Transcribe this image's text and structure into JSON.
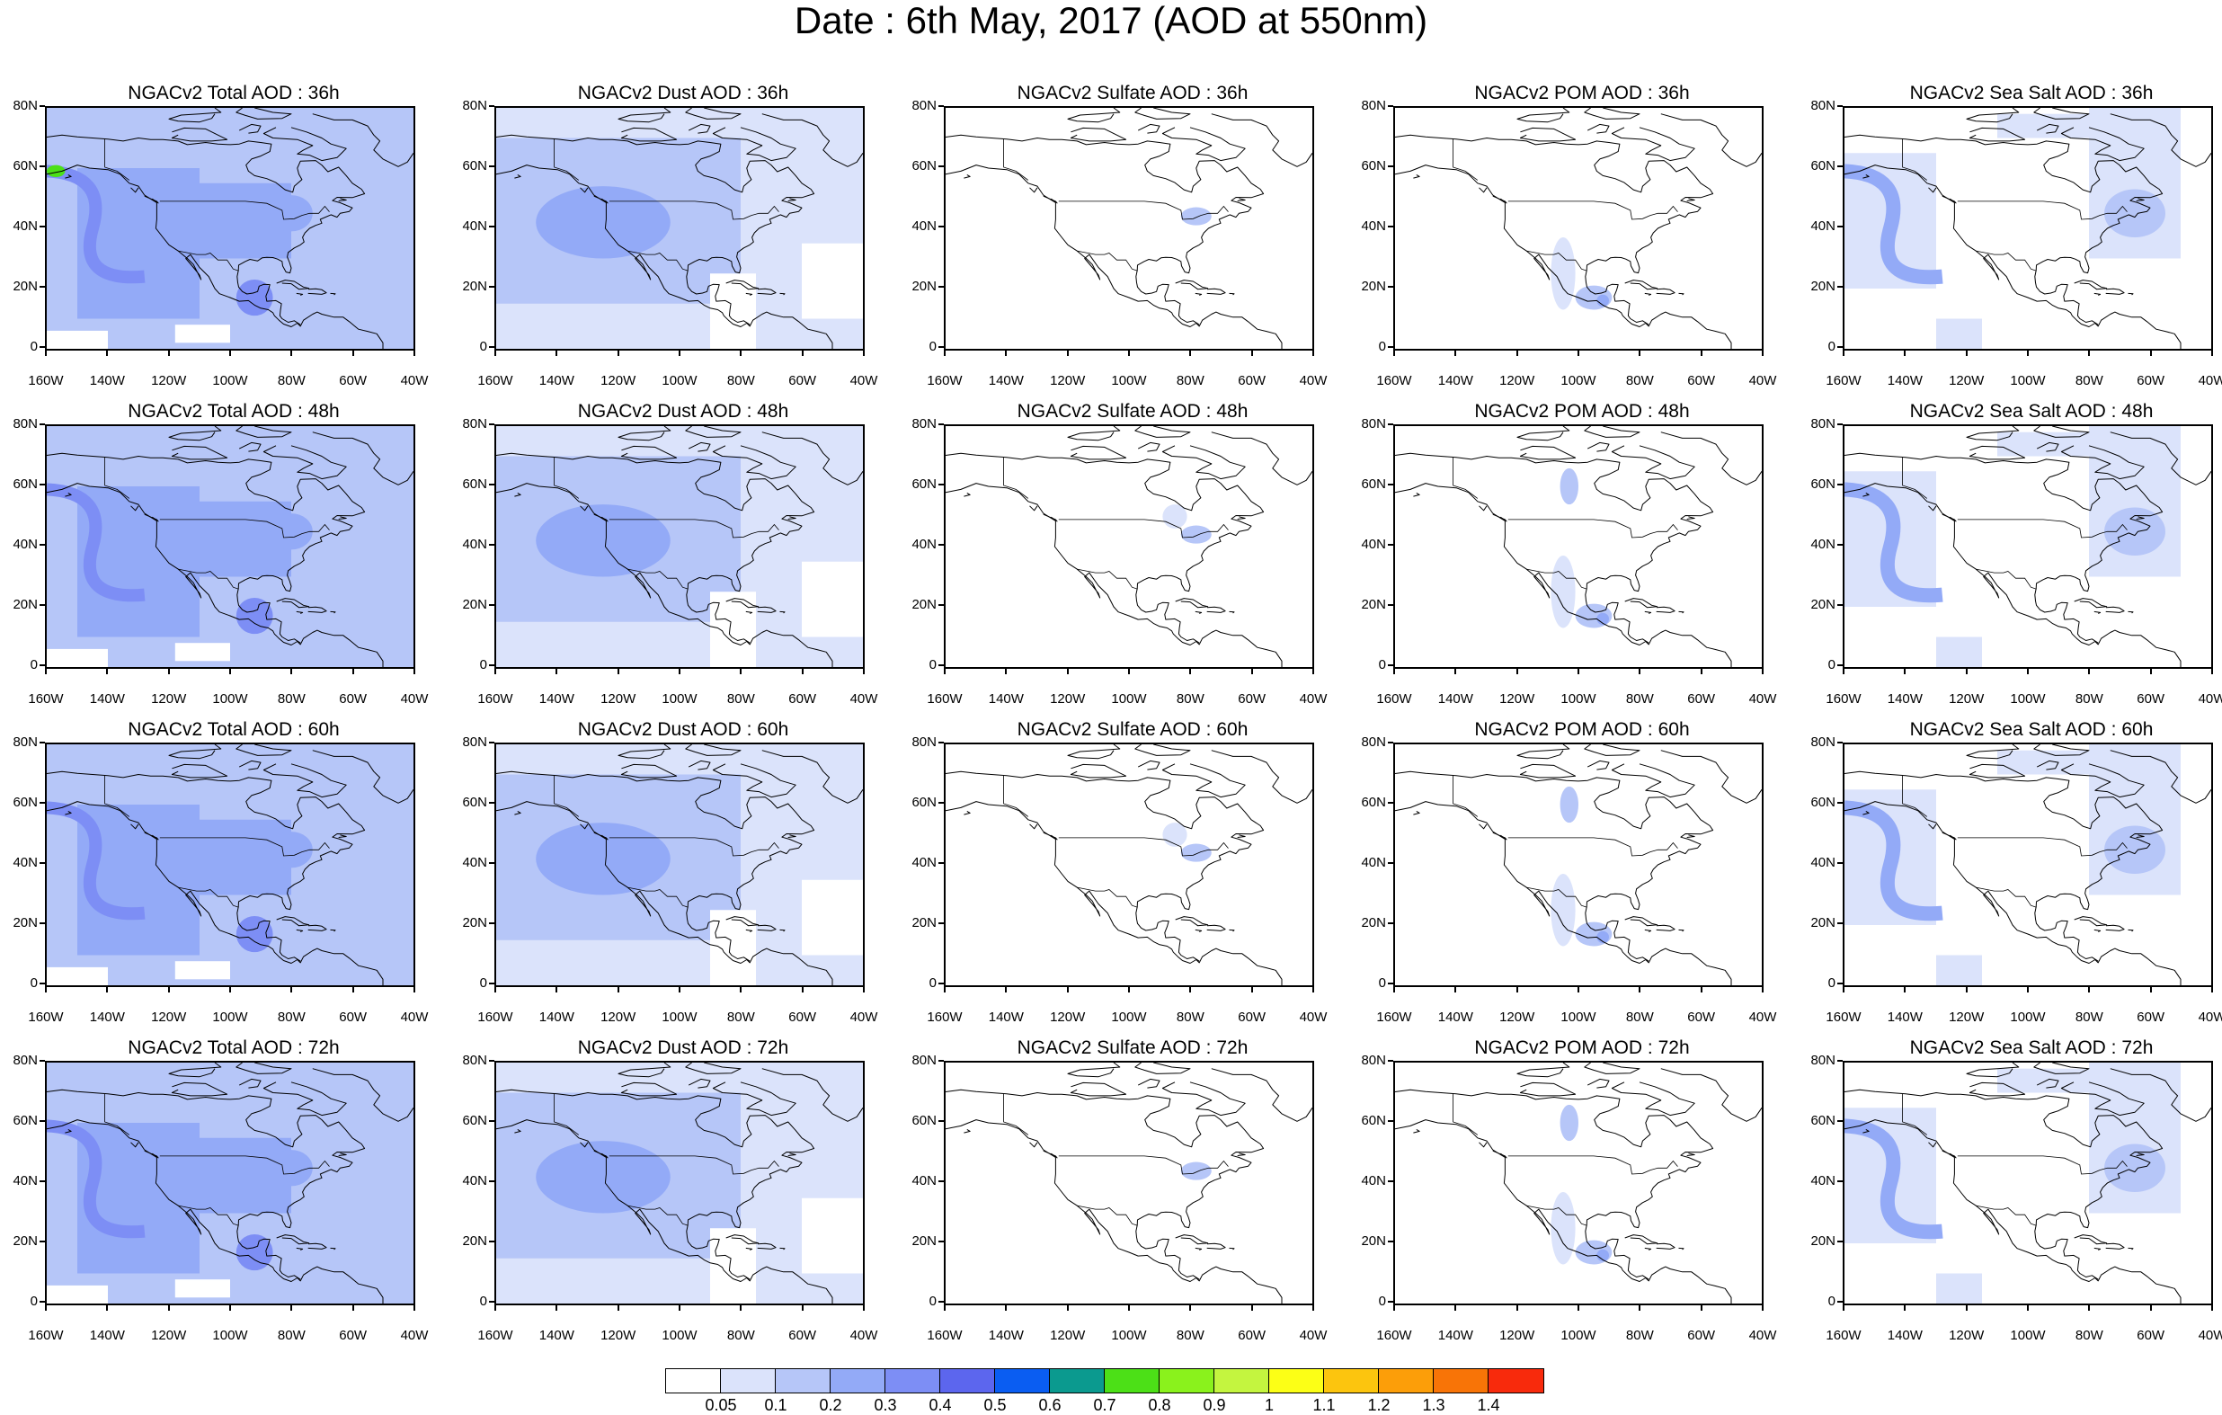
{
  "title": "Date : 6th May, 2017 (AOD at 550nm)",
  "panels": [
    {
      "title": "NGACv2 Total AOD : 36h",
      "type": "total"
    },
    {
      "title": "NGACv2 Dust AOD : 36h",
      "type": "dust"
    },
    {
      "title": "NGACv2 Sulfate AOD : 36h",
      "type": "sulfate"
    },
    {
      "title": "NGACv2 POM AOD : 36h",
      "type": "pom"
    },
    {
      "title": "NGACv2 Sea Salt AOD : 36h",
      "type": "seasalt"
    },
    {
      "title": "NGACv2 Total AOD : 48h",
      "type": "total"
    },
    {
      "title": "NGACv2 Dust AOD : 48h",
      "type": "dust"
    },
    {
      "title": "NGACv2 Sulfate AOD : 48h",
      "type": "sulfate"
    },
    {
      "title": "NGACv2 POM AOD : 48h",
      "type": "pom"
    },
    {
      "title": "NGACv2 Sea Salt AOD : 48h",
      "type": "seasalt"
    },
    {
      "title": "NGACv2 Total AOD : 60h",
      "type": "total"
    },
    {
      "title": "NGACv2 Dust AOD : 60h",
      "type": "dust"
    },
    {
      "title": "NGACv2 Sulfate AOD : 60h",
      "type": "sulfate"
    },
    {
      "title": "NGACv2 POM AOD : 60h",
      "type": "pom"
    },
    {
      "title": "NGACv2 Sea Salt AOD : 60h",
      "type": "seasalt"
    },
    {
      "title": "NGACv2 Total AOD : 72h",
      "type": "total"
    },
    {
      "title": "NGACv2 Dust AOD : 72h",
      "type": "dust"
    },
    {
      "title": "NGACv2 Sulfate AOD : 72h",
      "type": "sulfate"
    },
    {
      "title": "NGACv2 POM AOD : 72h",
      "type": "pom"
    },
    {
      "title": "NGACv2 Sea Salt  AOD : 72h",
      "type": "seasalt"
    }
  ],
  "y_labels": [
    "80N",
    "60N",
    "40N",
    "20N",
    "0"
  ],
  "x_labels": [
    "160W",
    "140W",
    "120W",
    "100W",
    "80W",
    "60W",
    "40W"
  ],
  "colorbar": {
    "labels": [
      "0.05",
      "0.1",
      "0.2",
      "0.3",
      "0.4",
      "0.5",
      "0.6",
      "0.7",
      "0.8",
      "0.9",
      "1",
      "1.1",
      "1.2",
      "1.3",
      "1.4"
    ],
    "colors": [
      "#ffffff",
      "#dbe3fb",
      "#b6c6f8",
      "#93aaf7",
      "#7d8ef5",
      "#5c66ee",
      "#0a5df2",
      "#0b9a8f",
      "#4ce017",
      "#8af21c",
      "#c4f53f",
      "#fcff16",
      "#fcc50e",
      "#fc9e09",
      "#f87407",
      "#f82a0c"
    ]
  },
  "region_colors": {
    "light": "#dbe3fb",
    "mid": "#b6c6f8",
    "deep": "#93aaf7",
    "strong": "#7d8ef5",
    "peak": "#5c66ee",
    "green": "#4ce017"
  }
}
